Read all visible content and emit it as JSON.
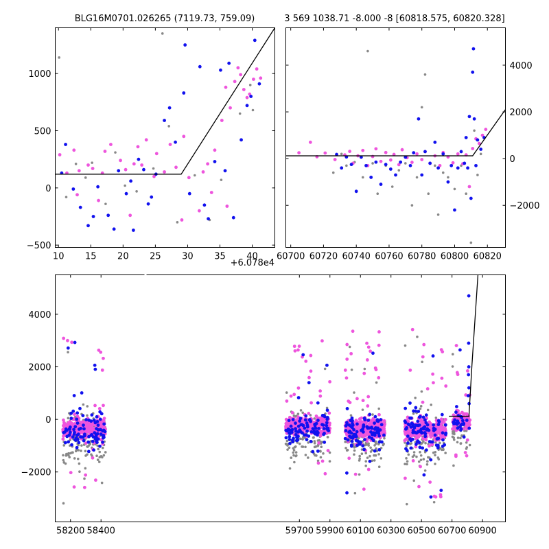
{
  "colors": {
    "magenta": "#ee55dd",
    "blue": "#1111ee",
    "gray": "#888888",
    "line": "#000000"
  },
  "chart_data": [
    {
      "type": "scatter",
      "panel": "top-left",
      "title": "BLG16M0701.026265 (7119.73, 759.09)",
      "offset_label": "+6.078e4",
      "xlim": [
        9.5,
        43.5
      ],
      "ylim": [
        -520,
        1400
      ],
      "xticks": [
        10,
        15,
        20,
        25,
        30,
        35,
        40
      ],
      "yticks": [
        -500,
        0,
        500,
        1000
      ],
      "model": [
        [
          9.5,
          120
        ],
        [
          29,
          120
        ],
        [
          43.5,
          1400
        ]
      ],
      "series": [
        {
          "color": "magenta",
          "points": [
            [
              10.2,
              290
            ],
            [
              11.3,
              130
            ],
            [
              12.4,
              330
            ],
            [
              13.2,
              150
            ],
            [
              14.6,
              200
            ],
            [
              15.3,
              170
            ],
            [
              16.8,
              130
            ],
            [
              17.2,
              320
            ],
            [
              18.1,
              380
            ],
            [
              19.6,
              240
            ],
            [
              20.4,
              160
            ],
            [
              21.7,
              210
            ],
            [
              22.3,
              360
            ],
            [
              22.9,
              200
            ],
            [
              23.6,
              420
            ],
            [
              24.8,
              100
            ],
            [
              25.2,
              300
            ],
            [
              26.4,
              140
            ],
            [
              27.3,
              380
            ],
            [
              28.2,
              180
            ],
            [
              29.1,
              -280
            ],
            [
              29.4,
              450
            ],
            [
              30.2,
              90
            ],
            [
              31.8,
              -200
            ],
            [
              32.4,
              140
            ],
            [
              33.1,
              210
            ],
            [
              34.2,
              330
            ],
            [
              35.3,
              590
            ],
            [
              35.9,
              880
            ],
            [
              36.6,
              700
            ],
            [
              37.3,
              930
            ],
            [
              37.8,
              1050
            ],
            [
              38.2,
              990
            ],
            [
              38.7,
              860
            ],
            [
              39.2,
              790
            ],
            [
              39.6,
              820
            ],
            [
              40.2,
              950
            ],
            [
              40.7,
              1040
            ],
            [
              41.3,
              960
            ],
            [
              36.1,
              -160
            ],
            [
              33.7,
              -40
            ],
            [
              21.1,
              -240
            ],
            [
              16.2,
              -110
            ],
            [
              12.9,
              -60
            ]
          ]
        },
        {
          "color": "blue",
          "points": [
            [
              10.5,
              130
            ],
            [
              11.1,
              380
            ],
            [
              12.3,
              -10
            ],
            [
              13.4,
              -170
            ],
            [
              14.6,
              -330
            ],
            [
              15.4,
              -250
            ],
            [
              16.1,
              10
            ],
            [
              17.7,
              -240
            ],
            [
              18.6,
              -360
            ],
            [
              19.3,
              150
            ],
            [
              20.5,
              -50
            ],
            [
              21.2,
              60
            ],
            [
              21.6,
              -370
            ],
            [
              22.4,
              250
            ],
            [
              23.2,
              160
            ],
            [
              23.9,
              -140
            ],
            [
              24.4,
              -80
            ],
            [
              25.1,
              120
            ],
            [
              26.4,
              590
            ],
            [
              27.2,
              700
            ],
            [
              28.1,
              400
            ],
            [
              29.4,
              830
            ],
            [
              29.6,
              1250
            ],
            [
              30.3,
              -50
            ],
            [
              31.9,
              1060
            ],
            [
              32.6,
              -150
            ],
            [
              33.2,
              -270
            ],
            [
              34.2,
              230
            ],
            [
              35.1,
              1030
            ],
            [
              35.8,
              150
            ],
            [
              36.4,
              1090
            ],
            [
              37.1,
              -260
            ],
            [
              38.3,
              420
            ],
            [
              39.2,
              720
            ],
            [
              39.8,
              800
            ],
            [
              40.4,
              1290
            ],
            [
              41.1,
              910
            ]
          ]
        },
        {
          "color": "gray",
          "points": [
            [
              10.1,
              1140
            ],
            [
              11.2,
              -80
            ],
            [
              12.7,
              210
            ],
            [
              14.2,
              90
            ],
            [
              15.2,
              220
            ],
            [
              17.3,
              -140
            ],
            [
              18.8,
              310
            ],
            [
              20.3,
              20
            ],
            [
              22.1,
              -30
            ],
            [
              23.2,
              -540
            ],
            [
              24.7,
              170
            ],
            [
              26.1,
              1350
            ],
            [
              27.1,
              540
            ],
            [
              28.4,
              -300
            ],
            [
              31.1,
              110
            ],
            [
              33.4,
              -280
            ],
            [
              35.2,
              70
            ],
            [
              38.1,
              650
            ],
            [
              39.7,
              900
            ],
            [
              40.1,
              680
            ]
          ]
        }
      ]
    },
    {
      "type": "scatter",
      "panel": "top-right",
      "title": "3 569 1038.71 -8.000 -8 [60818.575, 60820.328]",
      "xlim": [
        60697,
        60831
      ],
      "ylim": [
        -3800,
        5600
      ],
      "xticks": [
        60700,
        60720,
        60740,
        60760,
        60780,
        60800,
        60820
      ],
      "yticks": [
        -2000,
        0,
        2000,
        4000
      ],
      "model": [
        [
          60697,
          120
        ],
        [
          60811,
          120
        ],
        [
          60831,
          2100
        ]
      ],
      "series": [
        {
          "color": "magenta",
          "points": [
            [
              60705,
              250
            ],
            [
              60712,
              700
            ],
            [
              60716,
              80
            ],
            [
              60721,
              240
            ],
            [
              60727,
              -40
            ],
            [
              60733,
              160
            ],
            [
              60736,
              310
            ],
            [
              60738,
              -200
            ],
            [
              60741,
              120
            ],
            [
              60744,
              350
            ],
            [
              60747,
              -300
            ],
            [
              60750,
              90
            ],
            [
              60752,
              420
            ],
            [
              60755,
              -120
            ],
            [
              60758,
              260
            ],
            [
              60761,
              -60
            ],
            [
              60763,
              180
            ],
            [
              60766,
              -260
            ],
            [
              60768,
              380
            ],
            [
              60771,
              40
            ],
            [
              60774,
              -160
            ],
            [
              60777,
              200
            ],
            [
              60780,
              -40
            ],
            [
              60782,
              300
            ],
            [
              60785,
              -200
            ],
            [
              60788,
              120
            ],
            [
              60791,
              -300
            ],
            [
              60793,
              260
            ],
            [
              60796,
              70
            ],
            [
              60799,
              -180
            ],
            [
              60802,
              200
            ],
            [
              60805,
              -220
            ],
            [
              60807,
              160
            ],
            [
              60809,
              -1200
            ],
            [
              60811,
              430
            ],
            [
              60813,
              850
            ],
            [
              60815,
              650
            ],
            [
              60817,
              1000
            ],
            [
              60819,
              1250
            ]
          ]
        },
        {
          "color": "blue",
          "points": [
            [
              60728,
              180
            ],
            [
              60731,
              -400
            ],
            [
              60734,
              70
            ],
            [
              60737,
              -250
            ],
            [
              60740,
              -1400
            ],
            [
              60743,
              60
            ],
            [
              60746,
              -300
            ],
            [
              60749,
              -800
            ],
            [
              60752,
              -150
            ],
            [
              60755,
              -1100
            ],
            [
              60758,
              -250
            ],
            [
              60761,
              -450
            ],
            [
              60764,
              -700
            ],
            [
              60767,
              -150
            ],
            [
              60770,
              60
            ],
            [
              60773,
              -300
            ],
            [
              60775,
              250
            ],
            [
              60778,
              1700
            ],
            [
              60780,
              -700
            ],
            [
              60782,
              300
            ],
            [
              60785,
              -200
            ],
            [
              60788,
              700
            ],
            [
              60790,
              -400
            ],
            [
              60793,
              200
            ],
            [
              60796,
              -1000
            ],
            [
              60798,
              -300
            ],
            [
              60800,
              -2200
            ],
            [
              60802,
              -400
            ],
            [
              60804,
              300
            ],
            [
              60806,
              -200
            ],
            [
              60807,
              900
            ],
            [
              60808,
              -400
            ],
            [
              60809,
              1800
            ],
            [
              60810,
              -1700
            ],
            [
              60811,
              3700
            ],
            [
              60811.5,
              4700
            ],
            [
              60812,
              1700
            ],
            [
              60813,
              -300
            ],
            [
              60814,
              800
            ],
            [
              60816,
              400
            ],
            [
              60818,
              900
            ]
          ]
        },
        {
          "color": "gray",
          "points": [
            [
              60726,
              -600
            ],
            [
              60731,
              200
            ],
            [
              60734,
              -300
            ],
            [
              60739,
              -150
            ],
            [
              60744,
              -800
            ],
            [
              60747,
              4600
            ],
            [
              60750,
              -200
            ],
            [
              60753,
              -1500
            ],
            [
              60758,
              -300
            ],
            [
              60762,
              -1200
            ],
            [
              60766,
              -500
            ],
            [
              60770,
              -200
            ],
            [
              60774,
              -2000
            ],
            [
              60777,
              -800
            ],
            [
              60780,
              2200
            ],
            [
              60782,
              3600
            ],
            [
              60784,
              -1500
            ],
            [
              60788,
              -300
            ],
            [
              60790,
              -2400
            ],
            [
              60793,
              -600
            ],
            [
              60796,
              -800
            ],
            [
              60800,
              -1300
            ],
            [
              60804,
              -300
            ],
            [
              60807,
              -1500
            ],
            [
              60810,
              -3600
            ],
            [
              60812,
              1200
            ],
            [
              60814,
              -700
            ],
            [
              60816,
              200
            ]
          ]
        }
      ]
    },
    {
      "type": "scatter",
      "panel": "bottom",
      "broken_x_axis": true,
      "xlim": [
        58100,
        61050
      ],
      "ylim": [
        -3900,
        5500
      ],
      "xticks": [
        58200,
        58400,
        59700,
        59900,
        60100,
        60300,
        60500,
        60700,
        60900
      ],
      "yticks": [
        -2000,
        0,
        2000,
        4000
      ],
      "seasons": [
        {
          "x_range": [
            58150,
            58430
          ],
          "center": 58290,
          "y_mean": -350,
          "y_spread": 900
        },
        {
          "x_range": [
            59610,
            59900
          ],
          "center": 59755,
          "y_mean": -200,
          "y_spread": 800
        },
        {
          "x_range": [
            60000,
            60260
          ],
          "center": 60130,
          "y_mean": -350,
          "y_spread": 900
        },
        {
          "x_range": [
            60390,
            60660
          ],
          "center": 60525,
          "y_mean": -400,
          "y_spread": 950
        },
        {
          "x_range": [
            60700,
            60815
          ],
          "center": 60760,
          "y_mean": -50,
          "y_spread": 700
        }
      ],
      "model": [
        [
          60680,
          120
        ],
        [
          60811,
          120
        ],
        [
          60831,
          2100
        ],
        [
          60870,
          5500
        ]
      ]
    }
  ]
}
